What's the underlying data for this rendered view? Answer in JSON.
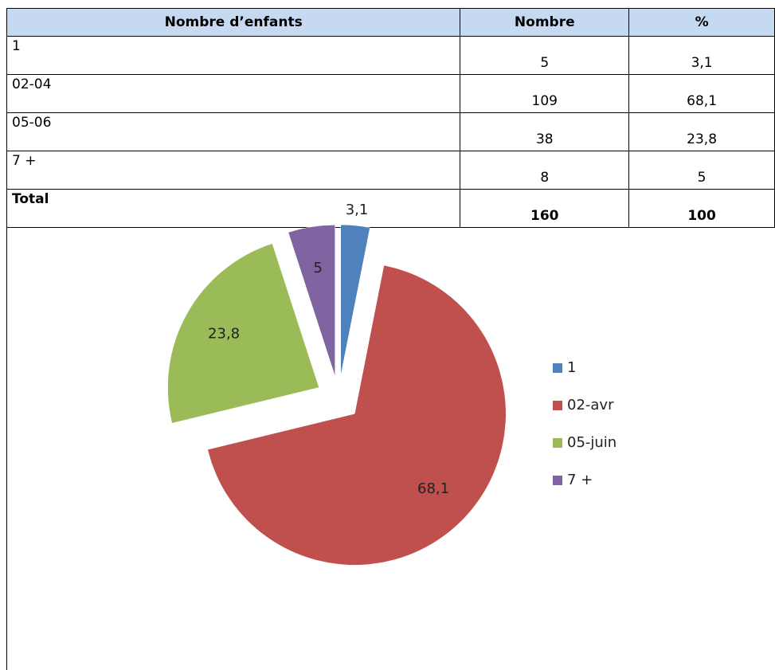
{
  "table": {
    "header": [
      "Nombre d’enfants",
      "Nombre",
      "%"
    ],
    "rows": [
      [
        "1",
        "5",
        "3,1"
      ],
      [
        "02-04",
        "109",
        "68,1"
      ],
      [
        "05-06",
        "38",
        "23,8"
      ],
      [
        "7 +",
        "8",
        "5"
      ],
      [
        "Total",
        "160",
        "100"
      ]
    ]
  },
  "chart_data": {
    "type": "pie",
    "categories": [
      "1",
      "02-avr",
      "05-juin",
      "7 +"
    ],
    "values": [
      3.1,
      68.1,
      23.8,
      5
    ],
    "value_labels": [
      "3,1",
      "68,1",
      "23,8",
      "5"
    ],
    "colors": [
      "#4f81bd",
      "#c0504d",
      "#9bbb59",
      "#8064a2"
    ]
  }
}
